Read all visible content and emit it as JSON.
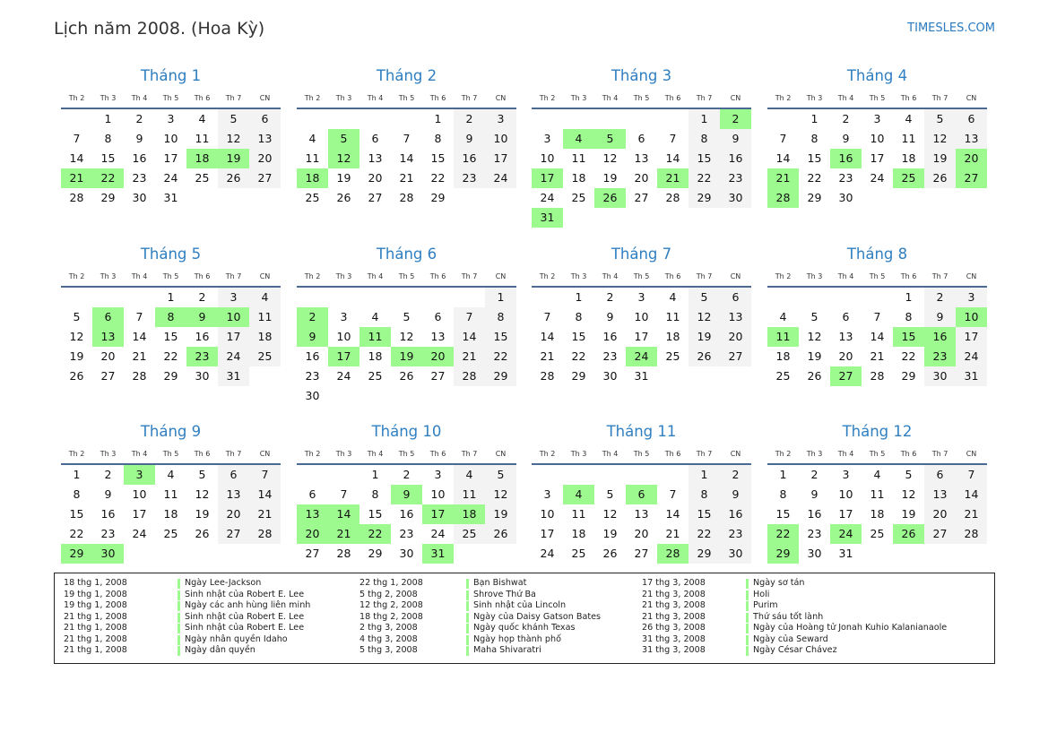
{
  "header": {
    "title": "Lịch năm 2008. (Hoa Kỳ)",
    "brand": "TIMESLES.COM"
  },
  "weekdays": [
    "Th 2",
    "Th 3",
    "Th 4",
    "Th 5",
    "Th 6",
    "Th 7",
    "CN"
  ],
  "colors": {
    "holiday": "#9cfa8f",
    "weekend": "#f3f3f3",
    "title": "#2f7fc1"
  },
  "months": [
    {
      "name": "Tháng 1",
      "start_weekday": 1,
      "days": 31,
      "holidays": [
        18,
        19,
        21,
        22
      ]
    },
    {
      "name": "Tháng 2",
      "start_weekday": 4,
      "days": 29,
      "holidays": [
        5,
        12,
        18
      ]
    },
    {
      "name": "Tháng 3",
      "start_weekday": 5,
      "days": 31,
      "holidays": [
        2,
        4,
        5,
        17,
        21,
        26,
        31
      ]
    },
    {
      "name": "Tháng 4",
      "start_weekday": 1,
      "days": 30,
      "holidays": [
        16,
        20,
        21,
        25,
        27,
        28
      ]
    },
    {
      "name": "Tháng 5",
      "start_weekday": 3,
      "days": 31,
      "holidays": [
        6,
        8,
        9,
        10,
        13,
        23
      ]
    },
    {
      "name": "Tháng 6",
      "start_weekday": 6,
      "days": 30,
      "holidays": [
        2,
        9,
        11,
        17,
        19,
        20
      ]
    },
    {
      "name": "Tháng 7",
      "start_weekday": 1,
      "days": 31,
      "holidays": [
        24
      ]
    },
    {
      "name": "Tháng 8",
      "start_weekday": 4,
      "days": 31,
      "holidays": [
        10,
        11,
        15,
        16,
        23,
        27
      ]
    },
    {
      "name": "Tháng 9",
      "start_weekday": 0,
      "days": 30,
      "holidays": [
        3,
        29,
        30
      ]
    },
    {
      "name": "Tháng 10",
      "start_weekday": 2,
      "days": 31,
      "holidays": [
        9,
        13,
        14,
        17,
        18,
        20,
        21,
        22,
        31
      ]
    },
    {
      "name": "Tháng 11",
      "start_weekday": 5,
      "days": 30,
      "holidays": [
        4,
        6,
        28
      ]
    },
    {
      "name": "Tháng 12",
      "start_weekday": 0,
      "days": 31,
      "holidays": [
        22,
        24,
        26,
        29
      ]
    }
  ],
  "legend": [
    [
      {
        "date": "18 thg 1, 2008",
        "name": "Ngày Lee-Jackson"
      },
      {
        "date": "19 thg 1, 2008",
        "name": "Sinh nhật của Robert E. Lee"
      },
      {
        "date": "19 thg 1, 2008",
        "name": "Ngày các anh hùng liên minh"
      },
      {
        "date": "21 thg 1, 2008",
        "name": "Sinh nhật của Robert E. Lee"
      },
      {
        "date": "21 thg 1, 2008",
        "name": "Sinh nhật của Robert E. Lee"
      },
      {
        "date": "21 thg 1, 2008",
        "name": "Ngày nhân quyền Idaho"
      },
      {
        "date": "21 thg 1, 2008",
        "name": "Ngày dân quyền"
      }
    ],
    [
      {
        "date": "22 thg 1, 2008",
        "name": "Bạn Bishwat"
      },
      {
        "date": "5 thg 2, 2008",
        "name": "Shrove Thứ Ba"
      },
      {
        "date": "12 thg 2, 2008",
        "name": "Sinh nhật của Lincoln"
      },
      {
        "date": "18 thg 2, 2008",
        "name": "Ngày của Daisy Gatson Bates"
      },
      {
        "date": "2 thg 3, 2008",
        "name": "Ngày quốc khánh Texas"
      },
      {
        "date": "4 thg 3, 2008",
        "name": "Ngày họp thành phố"
      },
      {
        "date": "5 thg 3, 2008",
        "name": "Maha Shivaratri"
      }
    ],
    [
      {
        "date": "17 thg 3, 2008",
        "name": "Ngày sơ tán"
      },
      {
        "date": "21 thg 3, 2008",
        "name": "Holi"
      },
      {
        "date": "21 thg 3, 2008",
        "name": "Purim"
      },
      {
        "date": "21 thg 3, 2008",
        "name": "Thứ sáu tốt lành"
      },
      {
        "date": "26 thg 3, 2008",
        "name": "Ngày của Hoàng tử Jonah Kuhio Kalanianaole"
      },
      {
        "date": "31 thg 3, 2008",
        "name": "Ngày của Seward"
      },
      {
        "date": "31 thg 3, 2008",
        "name": "Ngày César Chávez"
      }
    ]
  ]
}
